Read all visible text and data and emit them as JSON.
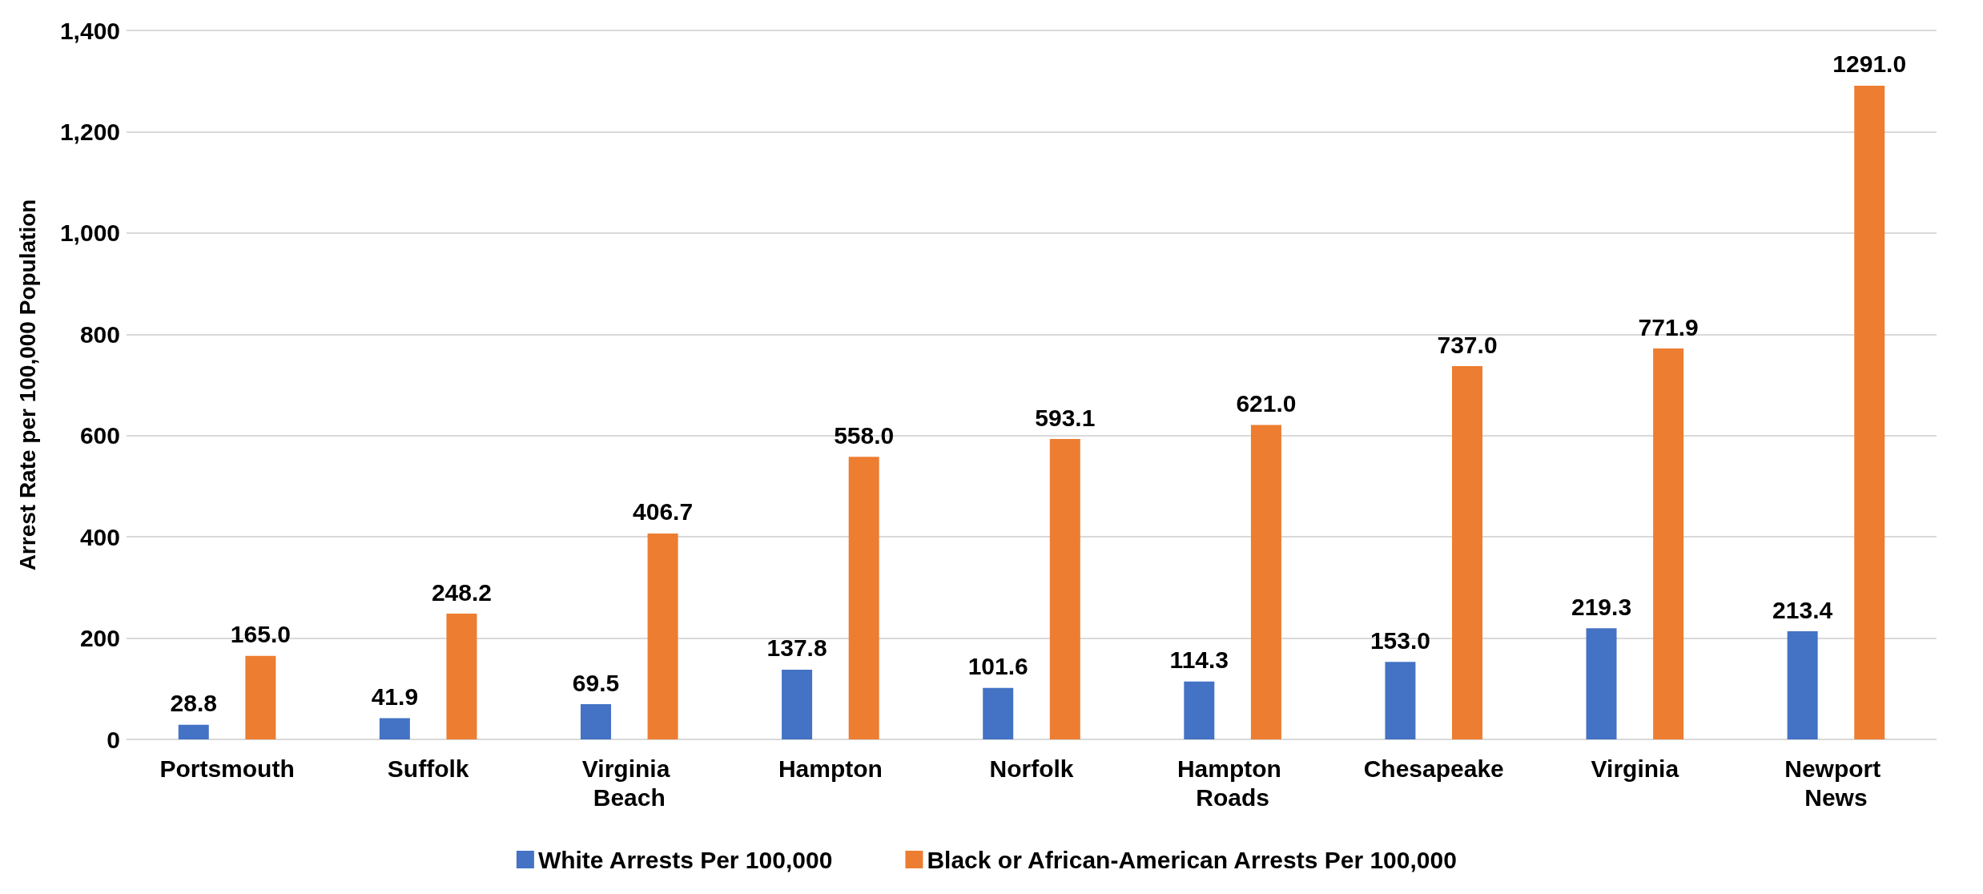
{
  "chart_data": {
    "type": "bar",
    "ylabel": "Arrest Rate per 100,000 Population",
    "categories": [
      "Portsmouth",
      "Suffolk",
      "Virginia Beach",
      "Hampton",
      "Norfolk",
      "Hampton Roads",
      "Chesapeake",
      "Virginia",
      "Newport News"
    ],
    "series": [
      {
        "name": "White Arrests Per 100,000",
        "color": "#4472c4",
        "values": [
          28.8,
          41.9,
          69.5,
          137.8,
          101.6,
          114.3,
          153.0,
          219.3,
          213.4
        ],
        "value_labels": [
          "28.8",
          "41.9",
          "69.5",
          "137.8",
          "101.6",
          "114.3",
          "153.0",
          "219.3",
          "213.4"
        ]
      },
      {
        "name": "Black or African-American Arrests Per 100,000",
        "color": "#ed7d31",
        "values": [
          165.0,
          248.2,
          406.7,
          558.0,
          593.1,
          621.0,
          737.0,
          771.9,
          1291.0
        ],
        "value_labels": [
          "165.0",
          "248.2",
          "406.7",
          "558.0",
          "593.1",
          "621.0",
          "737.0",
          "771.9",
          "1291.0"
        ]
      }
    ],
    "ylim": [
      0,
      1400
    ],
    "yticks": [
      0,
      200,
      400,
      600,
      800,
      {
        "value": 1000,
        "label": "1,000"
      },
      {
        "value": 1200,
        "label": "1,200"
      },
      {
        "value": 1400,
        "label": "1,400"
      }
    ],
    "grid": "y",
    "legend": "bottom"
  }
}
